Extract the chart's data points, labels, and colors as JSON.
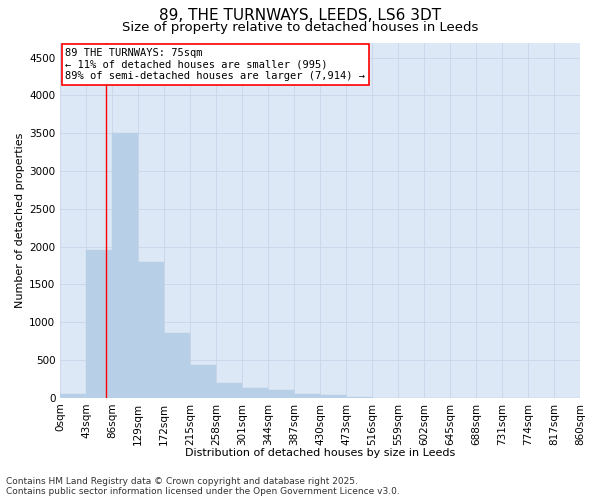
{
  "title": "89, THE TURNWAYS, LEEDS, LS6 3DT",
  "subtitle": "Size of property relative to detached houses in Leeds",
  "xlabel": "Distribution of detached houses by size in Leeds",
  "ylabel": "Number of detached properties",
  "bin_edges": [
    0,
    43,
    86,
    129,
    172,
    215,
    258,
    301,
    344,
    387,
    430,
    473,
    516,
    559,
    602,
    645,
    688,
    731,
    774,
    817,
    860
  ],
  "bar_heights": [
    50,
    1950,
    3500,
    1800,
    850,
    430,
    200,
    130,
    100,
    50,
    30,
    5,
    0,
    0,
    0,
    0,
    0,
    0,
    0,
    0
  ],
  "bar_color": "#b8cfe8",
  "bar_edge_color": "#b8cfe8",
  "grid_color": "#c8d4e8",
  "background_color": "#dce8f5",
  "vline_x": 75,
  "vline_color": "red",
  "annotation_line1": "89 THE TURNWAYS: 75sqm",
  "annotation_line2": "← 11% of detached houses are smaller (995)",
  "annotation_line3": "89% of semi-detached houses are larger (7,914) →",
  "annotation_box_color": "white",
  "annotation_box_edgecolor": "red",
  "ylim": [
    0,
    4700
  ],
  "yticks": [
    0,
    500,
    1000,
    1500,
    2000,
    2500,
    3000,
    3500,
    4000,
    4500
  ],
  "footer_line1": "Contains HM Land Registry data © Crown copyright and database right 2025.",
  "footer_line2": "Contains public sector information licensed under the Open Government Licence v3.0.",
  "title_fontsize": 11,
  "subtitle_fontsize": 9.5,
  "axis_label_fontsize": 8,
  "tick_fontsize": 7.5,
  "annotation_fontsize": 7.5,
  "footer_fontsize": 6.5
}
